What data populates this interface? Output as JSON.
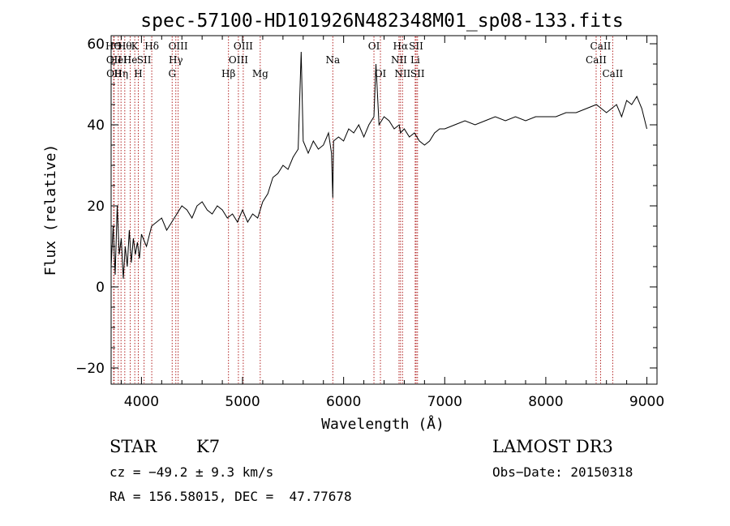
{
  "chart_data": {
    "type": "line",
    "title": "spec-57100-HD101926N482348M01_sp08-133.fits",
    "xlabel": "Wavelength (Å)",
    "ylabel": "Flux (relative)",
    "xlim": [
      3700,
      9100
    ],
    "ylim": [
      -24,
      62
    ],
    "x_ticks": [
      4000,
      5000,
      6000,
      7000,
      8000,
      9000
    ],
    "y_ticks": [
      -20,
      0,
      20,
      40,
      60
    ],
    "grid": false,
    "legend": "none",
    "line_color": "#000000",
    "marker_color": "#b22222",
    "series": [
      {
        "x": [
          3700,
          3720,
          3740,
          3760,
          3780,
          3800,
          3820,
          3840,
          3860,
          3880,
          3900,
          3920,
          3940,
          3960,
          3980,
          4000,
          4050,
          4100,
          4150,
          4200,
          4250,
          4300,
          4350,
          4400,
          4450,
          4500,
          4550,
          4600,
          4650,
          4700,
          4750,
          4800,
          4850,
          4900,
          4950,
          5000,
          5050,
          5100,
          5150,
          5200,
          5250,
          5300,
          5350,
          5400,
          5450,
          5500,
          5550,
          5580,
          5600,
          5650,
          5700,
          5750,
          5800,
          5850,
          5880,
          5893,
          5900,
          5950,
          6000,
          6050,
          6100,
          6150,
          6200,
          6250,
          6300,
          6320,
          6350,
          6400,
          6450,
          6500,
          6550,
          6563,
          6600,
          6650,
          6700,
          6750,
          6800,
          6850,
          6900,
          6950,
          7000,
          7100,
          7200,
          7300,
          7400,
          7500,
          7600,
          7700,
          7800,
          7900,
          8000,
          8100,
          8200,
          8300,
          8400,
          8500,
          8550,
          8600,
          8650,
          8700,
          8750,
          8800,
          8850,
          8900,
          8950,
          9000
        ],
        "y": [
          5,
          15,
          3,
          20,
          8,
          12,
          2,
          10,
          5,
          14,
          6,
          12,
          8,
          11,
          7,
          13,
          10,
          15,
          16,
          17,
          14,
          16,
          18,
          20,
          19,
          17,
          20,
          21,
          19,
          18,
          20,
          19,
          17,
          18,
          16,
          19,
          16,
          18,
          17,
          21,
          23,
          27,
          28,
          30,
          29,
          32,
          34,
          58,
          36,
          33,
          36,
          34,
          35,
          38,
          33,
          22,
          36,
          37,
          36,
          39,
          38,
          40,
          37,
          40,
          42,
          55,
          40,
          42,
          41,
          39,
          40,
          38,
          39,
          37,
          38,
          36,
          35,
          36,
          38,
          39,
          39,
          40,
          41,
          40,
          41,
          42,
          41,
          42,
          41,
          42,
          42,
          42,
          43,
          43,
          44,
          45,
          44,
          43,
          44,
          45,
          42,
          46,
          45,
          47,
          44,
          39
        ]
      }
    ],
    "lines": [
      {
        "x": 3725,
        "label": "HƟ",
        "row": 0
      },
      {
        "x": 3728,
        "label": "OII",
        "row": 1
      },
      {
        "x": 3730,
        "label": "OII",
        "row": 2
      },
      {
        "x": 3771,
        "label": "HeI",
        "row": 1
      },
      {
        "x": 3798,
        "label": "Hη",
        "row": 2
      },
      {
        "x": 3835,
        "label": "Hθ",
        "row": 0
      },
      {
        "x": 3889,
        "label": "He",
        "row": 1
      },
      {
        "x": 3934,
        "label": "K",
        "row": 0
      },
      {
        "x": 3969,
        "label": "H",
        "row": 2
      },
      {
        "x": 4026,
        "label": "SII",
        "row": 1
      },
      {
        "x": 4102,
        "label": "Hδ",
        "row": 0
      },
      {
        "x": 4304,
        "label": "G",
        "row": 2
      },
      {
        "x": 4340,
        "label": "Hγ",
        "row": 1
      },
      {
        "x": 4363,
        "label": "OIII",
        "row": 0
      },
      {
        "x": 4861,
        "label": "Hβ",
        "row": 2
      },
      {
        "x": 4959,
        "label": "OIII",
        "row": 1
      },
      {
        "x": 5007,
        "label": "OIII",
        "row": 0
      },
      {
        "x": 5175,
        "label": "Mg",
        "row": 2
      },
      {
        "x": 5893,
        "label": "Na",
        "row": 1
      },
      {
        "x": 6300,
        "label": "OI",
        "row": 0
      },
      {
        "x": 6364,
        "label": "OI",
        "row": 2
      },
      {
        "x": 6548,
        "label": "NII",
        "row": 1
      },
      {
        "x": 6563,
        "label": "Hα",
        "row": 0
      },
      {
        "x": 6583,
        "label": "NII",
        "row": 2
      },
      {
        "x": 6708,
        "label": "Li",
        "row": 1
      },
      {
        "x": 6717,
        "label": "SII",
        "row": 0
      },
      {
        "x": 6731,
        "label": "SII",
        "row": 2
      },
      {
        "x": 8498,
        "label": "CaII",
        "row": 1
      },
      {
        "x": 8542,
        "label": "CaII",
        "row": 0
      },
      {
        "x": 8662,
        "label": "CaII",
        "row": 2
      }
    ]
  },
  "info": {
    "object_class": "STAR",
    "subclass": "K7",
    "survey": "LAMOST DR3",
    "cz": "cz = −49.2 ± 9.3 km/s",
    "obs_date": "Obs−Date: 20150318",
    "coords": "RA = 156.58015, DEC =  47.77678"
  }
}
